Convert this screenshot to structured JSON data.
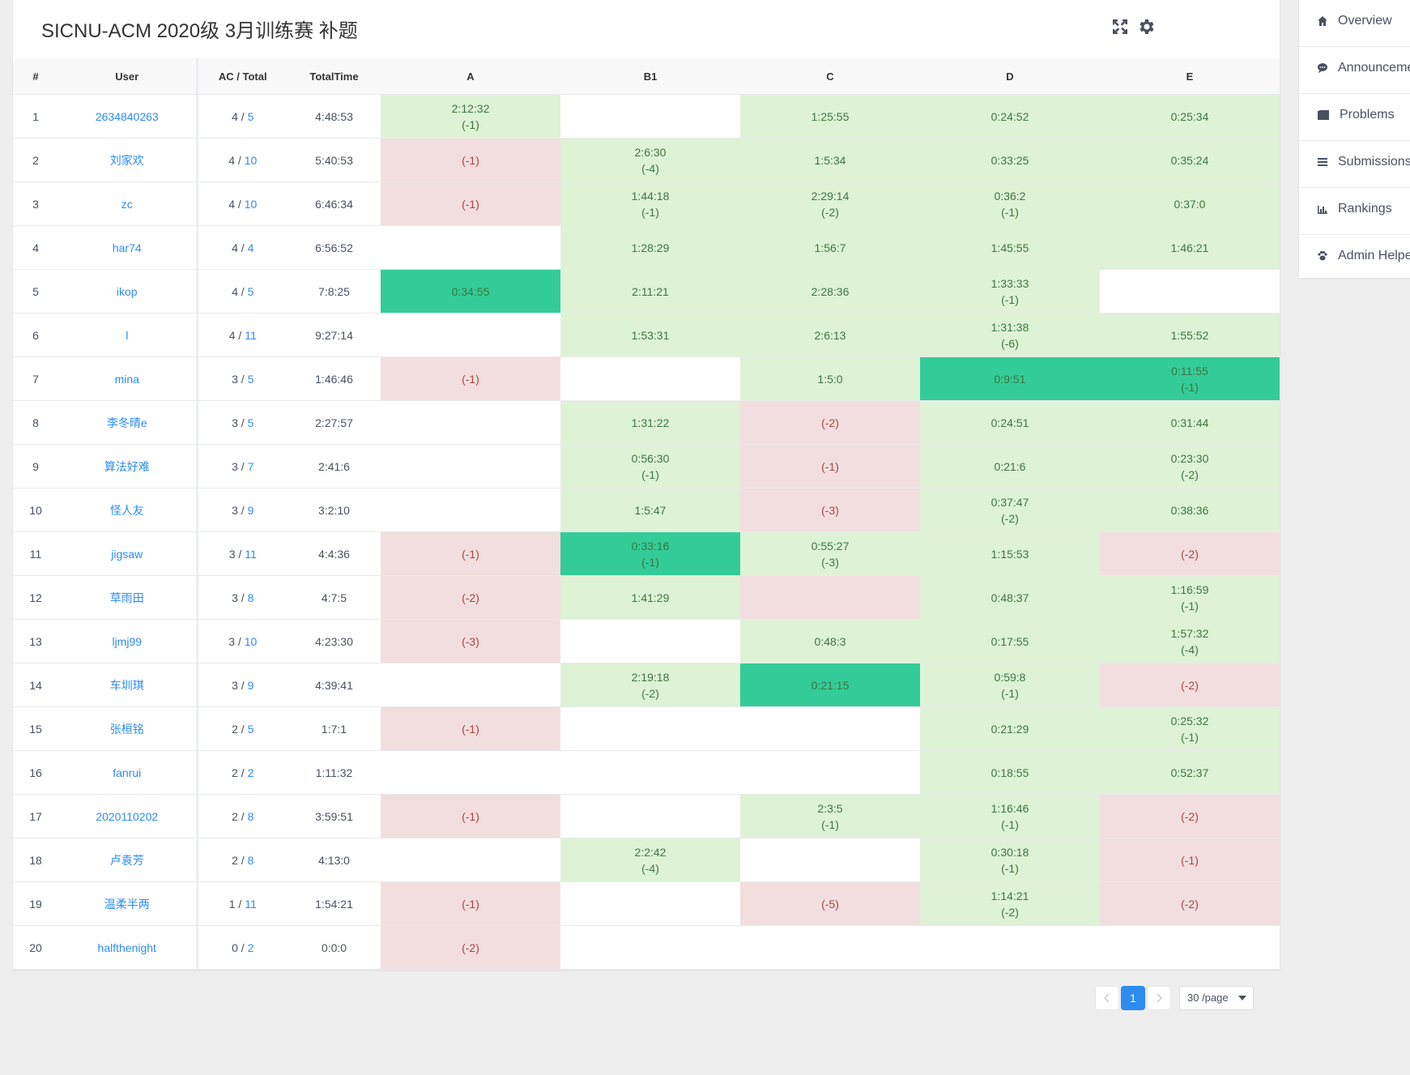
{
  "contest_title": "SICNU-ACM 2020级 3月训练赛 补题",
  "header_icons": [
    "fullscreen-icon",
    "gear-icon"
  ],
  "columns": {
    "rank": "#",
    "user": "User",
    "ac_total": "AC / Total",
    "total_time": "TotalTime",
    "problems": [
      "A",
      "B1",
      "C",
      "D",
      "E"
    ]
  },
  "rows": [
    {
      "rank": "1",
      "user": "2634840263",
      "ac": "4",
      "total": "5",
      "time": "4:48:53",
      "cells": [
        {
          "s": "ac",
          "t": "2:12:32",
          "p": "(-1)"
        },
        {
          "s": "",
          "t": "",
          "p": ""
        },
        {
          "s": "ac",
          "t": "1:25:55",
          "p": ""
        },
        {
          "s": "ac",
          "t": "0:24:52",
          "p": ""
        },
        {
          "s": "ac",
          "t": "0:25:34",
          "p": ""
        }
      ]
    },
    {
      "rank": "2",
      "user": "刘家欢",
      "ac": "4",
      "total": "10",
      "time": "5:40:53",
      "cells": [
        {
          "s": "wa",
          "t": "",
          "p": "(-1)"
        },
        {
          "s": "ac",
          "t": "2:6:30",
          "p": "(-4)"
        },
        {
          "s": "ac",
          "t": "1:5:34",
          "p": ""
        },
        {
          "s": "ac",
          "t": "0:33:25",
          "p": ""
        },
        {
          "s": "ac",
          "t": "0:35:24",
          "p": ""
        }
      ]
    },
    {
      "rank": "3",
      "user": "zc",
      "ac": "4",
      "total": "10",
      "time": "6:46:34",
      "cells": [
        {
          "s": "wa",
          "t": "",
          "p": "(-1)"
        },
        {
          "s": "ac",
          "t": "1:44:18",
          "p": "(-1)"
        },
        {
          "s": "ac",
          "t": "2:29:14",
          "p": "(-2)"
        },
        {
          "s": "ac",
          "t": "0:36:2",
          "p": "(-1)"
        },
        {
          "s": "ac",
          "t": "0:37:0",
          "p": ""
        }
      ]
    },
    {
      "rank": "4",
      "user": "har74",
      "ac": "4",
      "total": "4",
      "time": "6:56:52",
      "cells": [
        {
          "s": "",
          "t": "",
          "p": ""
        },
        {
          "s": "ac",
          "t": "1:28:29",
          "p": ""
        },
        {
          "s": "ac",
          "t": "1:56:7",
          "p": ""
        },
        {
          "s": "ac",
          "t": "1:45:55",
          "p": ""
        },
        {
          "s": "ac",
          "t": "1:46:21",
          "p": ""
        }
      ]
    },
    {
      "rank": "5",
      "user": "ikop",
      "ac": "4",
      "total": "5",
      "time": "7:8:25",
      "cells": [
        {
          "s": "fb",
          "t": "0:34:55",
          "p": ""
        },
        {
          "s": "ac",
          "t": "2:11:21",
          "p": ""
        },
        {
          "s": "ac",
          "t": "2:28:36",
          "p": ""
        },
        {
          "s": "ac",
          "t": "1:33:33",
          "p": "(-1)"
        },
        {
          "s": "",
          "t": "",
          "p": ""
        }
      ]
    },
    {
      "rank": "6",
      "user": "l",
      "ac": "4",
      "total": "11",
      "time": "9:27:14",
      "cells": [
        {
          "s": "",
          "t": "",
          "p": ""
        },
        {
          "s": "ac",
          "t": "1:53:31",
          "p": ""
        },
        {
          "s": "ac",
          "t": "2:6:13",
          "p": ""
        },
        {
          "s": "ac",
          "t": "1:31:38",
          "p": "(-6)"
        },
        {
          "s": "ac",
          "t": "1:55:52",
          "p": ""
        }
      ]
    },
    {
      "rank": "7",
      "user": "mina",
      "ac": "3",
      "total": "5",
      "time": "1:46:46",
      "cells": [
        {
          "s": "wa",
          "t": "",
          "p": "(-1)"
        },
        {
          "s": "",
          "t": "",
          "p": ""
        },
        {
          "s": "ac",
          "t": "1:5:0",
          "p": ""
        },
        {
          "s": "fb",
          "t": "0:9:51",
          "p": ""
        },
        {
          "s": "fb",
          "t": "0:11:55",
          "p": "(-1)"
        }
      ]
    },
    {
      "rank": "8",
      "user": "李冬晴e",
      "ac": "3",
      "total": "5",
      "time": "2:27:57",
      "cells": [
        {
          "s": "",
          "t": "",
          "p": ""
        },
        {
          "s": "ac",
          "t": "1:31:22",
          "p": ""
        },
        {
          "s": "wa",
          "t": "",
          "p": "(-2)"
        },
        {
          "s": "ac",
          "t": "0:24:51",
          "p": ""
        },
        {
          "s": "ac",
          "t": "0:31:44",
          "p": ""
        }
      ]
    },
    {
      "rank": "9",
      "user": "算法好难",
      "ac": "3",
      "total": "7",
      "time": "2:41:6",
      "cells": [
        {
          "s": "",
          "t": "",
          "p": ""
        },
        {
          "s": "ac",
          "t": "0:56:30",
          "p": "(-1)"
        },
        {
          "s": "wa",
          "t": "",
          "p": "(-1)"
        },
        {
          "s": "ac",
          "t": "0:21:6",
          "p": ""
        },
        {
          "s": "ac",
          "t": "0:23:30",
          "p": "(-2)"
        }
      ]
    },
    {
      "rank": "10",
      "user": "怪人友",
      "ac": "3",
      "total": "9",
      "time": "3:2:10",
      "cells": [
        {
          "s": "",
          "t": "",
          "p": ""
        },
        {
          "s": "ac",
          "t": "1:5:47",
          "p": ""
        },
        {
          "s": "wa",
          "t": "",
          "p": "(-3)"
        },
        {
          "s": "ac",
          "t": "0:37:47",
          "p": "(-2)"
        },
        {
          "s": "ac",
          "t": "0:38:36",
          "p": ""
        }
      ]
    },
    {
      "rank": "11",
      "user": "jigsaw",
      "ac": "3",
      "total": "11",
      "time": "4:4:36",
      "cells": [
        {
          "s": "wa",
          "t": "",
          "p": "(-1)"
        },
        {
          "s": "fb",
          "t": "0:33:16",
          "p": "(-1)"
        },
        {
          "s": "ac",
          "t": "0:55:27",
          "p": "(-3)"
        },
        {
          "s": "ac",
          "t": "1:15:53",
          "p": ""
        },
        {
          "s": "wa",
          "t": "",
          "p": "(-2)"
        }
      ]
    },
    {
      "rank": "12",
      "user": "草雨田",
      "ac": "3",
      "total": "8",
      "time": "4:7:5",
      "cells": [
        {
          "s": "wa",
          "t": "",
          "p": "(-2)"
        },
        {
          "s": "ac",
          "t": "1:41:29",
          "p": ""
        },
        {
          "s": "wa",
          "t": "",
          "p": ""
        },
        {
          "s": "ac",
          "t": "0:48:37",
          "p": ""
        },
        {
          "s": "ac",
          "t": "1:16:59",
          "p": "(-1)"
        }
      ]
    },
    {
      "rank": "13",
      "user": "ljmj99",
      "ac": "3",
      "total": "10",
      "time": "4:23:30",
      "cells": [
        {
          "s": "wa",
          "t": "",
          "p": "(-3)"
        },
        {
          "s": "",
          "t": "",
          "p": ""
        },
        {
          "s": "ac",
          "t": "0:48:3",
          "p": ""
        },
        {
          "s": "ac",
          "t": "0:17:55",
          "p": ""
        },
        {
          "s": "ac",
          "t": "1:57:32",
          "p": "(-4)"
        }
      ]
    },
    {
      "rank": "14",
      "user": "车圳琪",
      "ac": "3",
      "total": "9",
      "time": "4:39:41",
      "cells": [
        {
          "s": "",
          "t": "",
          "p": ""
        },
        {
          "s": "ac",
          "t": "2:19:18",
          "p": "(-2)"
        },
        {
          "s": "fb",
          "t": "0:21:15",
          "p": ""
        },
        {
          "s": "ac",
          "t": "0:59:8",
          "p": "(-1)"
        },
        {
          "s": "wa",
          "t": "",
          "p": "(-2)"
        }
      ]
    },
    {
      "rank": "15",
      "user": "张桓铭",
      "ac": "2",
      "total": "5",
      "time": "1:7:1",
      "cells": [
        {
          "s": "wa",
          "t": "",
          "p": "(-1)"
        },
        {
          "s": "",
          "t": "",
          "p": ""
        },
        {
          "s": "",
          "t": "",
          "p": ""
        },
        {
          "s": "ac",
          "t": "0:21:29",
          "p": ""
        },
        {
          "s": "ac",
          "t": "0:25:32",
          "p": "(-1)"
        }
      ]
    },
    {
      "rank": "16",
      "user": "fanrui",
      "ac": "2",
      "total": "2",
      "time": "1:11:32",
      "cells": [
        {
          "s": "",
          "t": "",
          "p": ""
        },
        {
          "s": "",
          "t": "",
          "p": ""
        },
        {
          "s": "",
          "t": "",
          "p": ""
        },
        {
          "s": "ac",
          "t": "0:18:55",
          "p": ""
        },
        {
          "s": "ac",
          "t": "0:52:37",
          "p": ""
        }
      ]
    },
    {
      "rank": "17",
      "user": "2020110202",
      "ac": "2",
      "total": "8",
      "time": "3:59:51",
      "cells": [
        {
          "s": "wa",
          "t": "",
          "p": "(-1)"
        },
        {
          "s": "",
          "t": "",
          "p": ""
        },
        {
          "s": "ac",
          "t": "2:3:5",
          "p": "(-1)"
        },
        {
          "s": "ac",
          "t": "1:16:46",
          "p": "(-1)"
        },
        {
          "s": "wa",
          "t": "",
          "p": "(-2)"
        }
      ]
    },
    {
      "rank": "18",
      "user": "卢袁芳",
      "ac": "2",
      "total": "8",
      "time": "4:13:0",
      "cells": [
        {
          "s": "",
          "t": "",
          "p": ""
        },
        {
          "s": "ac",
          "t": "2:2:42",
          "p": "(-4)"
        },
        {
          "s": "",
          "t": "",
          "p": ""
        },
        {
          "s": "ac",
          "t": "0:30:18",
          "p": "(-1)"
        },
        {
          "s": "wa",
          "t": "",
          "p": "(-1)"
        }
      ]
    },
    {
      "rank": "19",
      "user": "温柔半两",
      "ac": "1",
      "total": "11",
      "time": "1:54:21",
      "cells": [
        {
          "s": "wa",
          "t": "",
          "p": "(-1)"
        },
        {
          "s": "",
          "t": "",
          "p": ""
        },
        {
          "s": "wa",
          "t": "",
          "p": "(-5)"
        },
        {
          "s": "ac",
          "t": "1:14:21",
          "p": "(-2)"
        },
        {
          "s": "wa",
          "t": "",
          "p": "(-2)"
        }
      ]
    },
    {
      "rank": "20",
      "user": "halfthenight",
      "ac": "0",
      "total": "2",
      "time": "0:0:0",
      "cells": [
        {
          "s": "wa",
          "t": "",
          "p": "(-2)"
        },
        {
          "s": "",
          "t": "",
          "p": ""
        },
        {
          "s": "",
          "t": "",
          "p": ""
        },
        {
          "s": "",
          "t": "",
          "p": ""
        },
        {
          "s": "",
          "t": "",
          "p": ""
        }
      ]
    }
  ],
  "sidebar": {
    "items": [
      {
        "label": "Overview",
        "icon": "home-icon"
      },
      {
        "label": "Announcements",
        "icon": "chat-icon"
      },
      {
        "label": "Problems",
        "icon": "book-icon"
      },
      {
        "label": "Submissions",
        "icon": "list-icon"
      },
      {
        "label": "Rankings",
        "icon": "bar-chart-icon"
      },
      {
        "label": "Admin Helper",
        "icon": "paw-icon"
      }
    ]
  },
  "pagination": {
    "current_page": "1",
    "page_size": "30 /page"
  },
  "colors": {
    "accepted": "#def2d6",
    "first_blood": "#33cc99",
    "wrong": "#f2dede",
    "link": "#2d8cf0"
  }
}
